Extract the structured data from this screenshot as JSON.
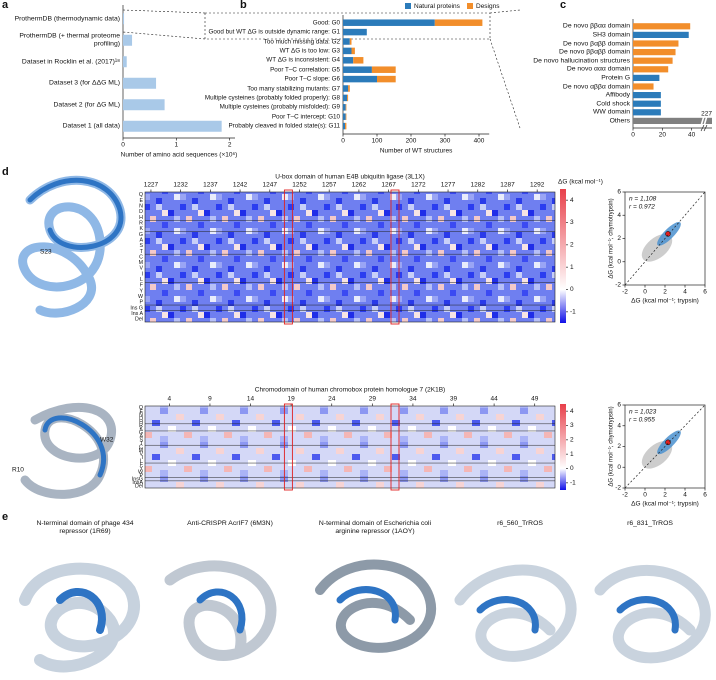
{
  "chart_data": [
    {
      "type": "hbar",
      "label": "a",
      "categories": [
        "ProthermDB (thermodynamic data)",
        "ProthermDB (+ thermal proteome profiling)",
        "Dataset in Rocklin et al. (2017)¹⁸",
        "Dataset 3 (for ΔΔG ML)",
        "Dataset 2 (for ΔG ML)",
        "Dataset 1 (all data)"
      ],
      "values": [
        0.02,
        0.17,
        0.07,
        0.62,
        0.78,
        1.85
      ],
      "color": "#a9c9e8",
      "xlim": [
        0,
        2.1
      ],
      "xticks": [
        0,
        1,
        2
      ],
      "xlabel": "Number of amino acid sequences (×10⁶)"
    },
    {
      "type": "hbar_stacked",
      "label": "b",
      "categories": [
        "Good: G0",
        "Good but WT ΔG is outside dynamic range: G1",
        "Too much missing data: G2",
        "WT ΔG is too low: G3",
        "WT ΔG is inconsistent: G4",
        "Poor T–C correlation: G5",
        "Poor T–C slope: G6",
        "Too many stabilizing mutants: G7",
        "Multiple cysteines (probably folded properly): G8",
        "Multiple cysteines (probably misfolded): G9",
        "Poor T–C intercept: G10",
        "Probably cleaved in folded state(s): G11"
      ],
      "series": [
        {
          "name": "Natural proteins",
          "color": "#2b7bba",
          "values": [
            270,
            70,
            20,
            25,
            30,
            85,
            100,
            15,
            12,
            8,
            8,
            6
          ]
        },
        {
          "name": "Designs",
          "color": "#f28e2b",
          "values": [
            140,
            0,
            5,
            10,
            30,
            70,
            55,
            5,
            3,
            2,
            2,
            4
          ]
        }
      ],
      "xlim": [
        0,
        430
      ],
      "xticks": [
        0,
        100,
        200,
        300,
        400
      ],
      "xlabel": "Number of WT structures",
      "legend": "top"
    },
    {
      "type": "hbar",
      "label": "c",
      "categories": [
        "De novo ββαα domain",
        "SH3 domain",
        "De novo βαββ domain",
        "De novo ββαββ domain",
        "De novo hallucination structures",
        "De novo ααα domain",
        "Protein G",
        "De novo αββα domain",
        "Affibody",
        "Cold shock",
        "WW domain",
        "Others"
      ],
      "values": [
        39,
        38,
        31,
        29,
        27,
        24,
        18,
        14,
        19,
        19,
        19,
        227
      ],
      "value_labels": [
        null,
        null,
        null,
        null,
        null,
        null,
        null,
        null,
        null,
        null,
        null,
        "227"
      ],
      "colors": [
        "#f28e2b",
        "#2b7bba",
        "#f28e2b",
        "#f28e2b",
        "#f28e2b",
        "#f28e2b",
        "#2b7bba",
        "#f28e2b",
        "#2b7bba",
        "#2b7bba",
        "#2b7bba",
        "#808080"
      ],
      "xlim": [
        0,
        45
      ],
      "xticks": [
        0,
        20,
        40
      ],
      "axis_break": true
    },
    {
      "type": "heatmap",
      "title": "U-box domain of human E4B ubiquitin ligase (3L1X)",
      "xlim": [
        1226,
        1295
      ],
      "xticks": [
        1227,
        1232,
        1237,
        1242,
        1247,
        1252,
        1257,
        1262,
        1267,
        1272,
        1277,
        1282,
        1287,
        1292
      ],
      "rows": [
        "Q",
        "E",
        "N",
        "D",
        "H",
        "R",
        "K",
        "G",
        "A",
        "S",
        "T",
        "C",
        "M",
        "V",
        "I",
        "L",
        "F",
        "Y",
        "W",
        "P",
        "Ins G",
        "Ins A",
        "Del"
      ],
      "clim": [
        -1.5,
        4.5
      ],
      "cticks": [
        -1,
        0,
        1,
        2,
        3,
        4
      ],
      "colorbar_label": "ΔG (kcal mol⁻¹)"
    },
    {
      "type": "heatmap",
      "title": "Chromodomain of human chromobox protein homologue 7 (2K1B)",
      "xlim": [
        1,
        51.5
      ],
      "xticks": [
        4,
        9,
        14,
        19,
        24,
        29,
        34,
        39,
        44,
        49
      ],
      "rows": [
        "Q",
        "E",
        "N",
        "D",
        "H",
        "R",
        "K",
        "G",
        "A",
        "S",
        "T",
        "C",
        "M",
        "V",
        "I",
        "L",
        "F",
        "Y",
        "W",
        "P",
        "InsG",
        "InsA",
        "Del"
      ],
      "clim": [
        -1.5,
        4.5
      ],
      "cticks": [
        -1,
        0,
        1,
        2,
        3,
        4
      ]
    },
    {
      "type": "scatter",
      "annotations": [
        "n = 1,108",
        "r = 0.972"
      ],
      "xlim": [
        -2,
        6
      ],
      "xticks": [
        -2,
        0,
        2,
        4,
        6
      ],
      "ylim": [
        -2,
        6
      ],
      "yticks": [
        -2,
        0,
        2,
        4,
        6
      ],
      "xlabel": "ΔG (kcal mol⁻¹; trypsin)",
      "ylabel": "ΔG (kcal mol⁻¹; chymotrypsin)"
    },
    {
      "type": "scatter",
      "annotations": [
        "n = 1,023",
        "r = 0.955"
      ],
      "xlim": [
        -2,
        6
      ],
      "xticks": [
        -2,
        0,
        2,
        4,
        6
      ],
      "ylim": [
        -2,
        6
      ],
      "yticks": [
        -2,
        0,
        2,
        4,
        6
      ],
      "xlabel": "ΔG (kcal mol⁻¹; trypsin)",
      "ylabel": "ΔG (kcal mol⁻¹; chymotrypsin)"
    }
  ],
  "panel_d": {
    "label": "d",
    "residues": [
      "S23",
      "R10",
      "W32"
    ]
  },
  "panel_e": {
    "label": "e",
    "titles": [
      "N-terminal domain of phage 434 repressor (1R69)",
      "Anti-CRISPR AcrIF7 (6M3N)",
      "N-terminal domain of Escherichia coli arginine repressor (1AOY)",
      "r6_560_TrROS",
      "r6_831_TrROS"
    ]
  }
}
